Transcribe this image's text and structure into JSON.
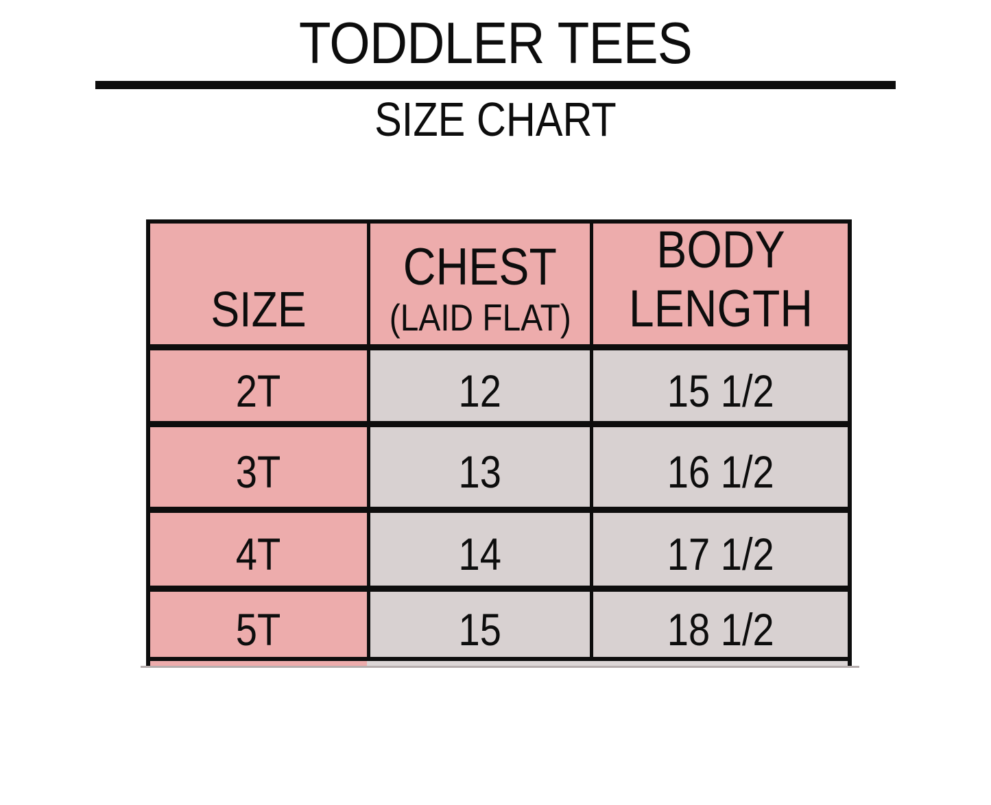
{
  "header": {
    "title": "TODDLER TEES",
    "subtitle": "SIZE CHART"
  },
  "size_table": {
    "columns": [
      {
        "label": "SIZE",
        "sublabel": ""
      },
      {
        "label": "CHEST",
        "sublabel": "(LAID FLAT)"
      },
      {
        "label": "BODY LENGTH",
        "sublabel": ""
      }
    ],
    "rows": [
      {
        "size": "2T",
        "chest": "12",
        "body_length": "15 1/2"
      },
      {
        "size": "3T",
        "chest": "13",
        "body_length": "16 1/2"
      },
      {
        "size": "4T",
        "chest": "14",
        "body_length": "17 1/2"
      },
      {
        "size": "5T",
        "chest": "15",
        "body_length": "18 1/2"
      }
    ]
  },
  "colors": {
    "header_pink": "#edacac",
    "cell_gray": "#d8d1d1",
    "border_black": "#0d0d0d",
    "background": "#ffffff"
  },
  "chart_data": {
    "type": "table",
    "title": "TODDLER TEES",
    "subtitle": "SIZE CHART",
    "columns": [
      "SIZE",
      "CHEST (LAID FLAT)",
      "BODY LENGTH"
    ],
    "rows": [
      [
        "2T",
        "12",
        "15 1/2"
      ],
      [
        "3T",
        "13",
        "16 1/2"
      ],
      [
        "4T",
        "14",
        "17 1/2"
      ],
      [
        "5T",
        "15",
        "18 1/2"
      ]
    ]
  }
}
